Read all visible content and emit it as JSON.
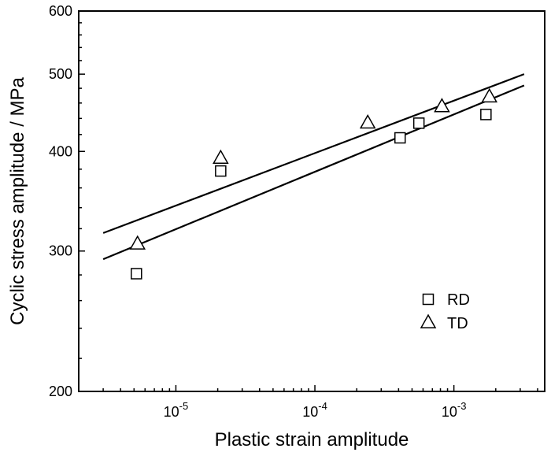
{
  "chart_data": {
    "type": "scatter",
    "xscale": "log",
    "yscale": "log",
    "xlabel": "Plastic strain amplitude",
    "ylabel": "Cyclic stress amplitude / MPa",
    "xlim": [
      2e-06,
      0.0045
    ],
    "ylim": [
      200,
      600
    ],
    "xticks": [
      {
        "value": 1e-05,
        "base": "10",
        "exp": "-5"
      },
      {
        "value": 0.0001,
        "base": "10",
        "exp": "-4"
      },
      {
        "value": 0.001,
        "base": "10",
        "exp": "-3"
      }
    ],
    "yticks": [
      {
        "value": 200,
        "label": "200"
      },
      {
        "value": 300,
        "label": "300"
      },
      {
        "value": 400,
        "label": "400"
      },
      {
        "value": 500,
        "label": "500"
      },
      {
        "value": 600,
        "label": "600"
      }
    ],
    "grid": false,
    "legend_position": "bottom-right",
    "series": [
      {
        "name": "RD",
        "marker": "square",
        "points": [
          {
            "x": 5.2e-06,
            "y": 281
          },
          {
            "x": 2.1e-05,
            "y": 378
          },
          {
            "x": 0.00041,
            "y": 416
          },
          {
            "x": 0.00056,
            "y": 434
          },
          {
            "x": 0.0017,
            "y": 445
          }
        ],
        "fit": [
          {
            "x": 3e-06,
            "y": 293
          },
          {
            "x": 0.0032,
            "y": 484
          }
        ]
      },
      {
        "name": "TD",
        "marker": "triangle",
        "points": [
          {
            "x": 5.3e-06,
            "y": 306
          },
          {
            "x": 2.1e-05,
            "y": 392
          },
          {
            "x": 0.00024,
            "y": 434
          },
          {
            "x": 0.00082,
            "y": 455
          },
          {
            "x": 0.0018,
            "y": 468
          }
        ],
        "fit": [
          {
            "x": 3e-06,
            "y": 316
          },
          {
            "x": 0.0032,
            "y": 500
          }
        ]
      }
    ]
  }
}
